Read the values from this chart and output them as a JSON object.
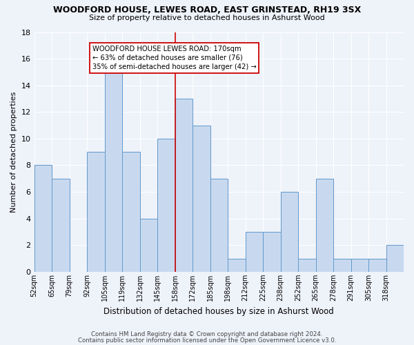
{
  "title": "WOODFORD HOUSE, LEWES ROAD, EAST GRINSTEAD, RH19 3SX",
  "subtitle": "Size of property relative to detached houses in Ashurst Wood",
  "xlabel": "Distribution of detached houses by size in Ashurst Wood",
  "ylabel": "Number of detached properties",
  "bin_labels": [
    "52sqm",
    "65sqm",
    "79sqm",
    "92sqm",
    "105sqm",
    "119sqm",
    "132sqm",
    "145sqm",
    "158sqm",
    "172sqm",
    "185sqm",
    "198sqm",
    "212sqm",
    "225sqm",
    "238sqm",
    "252sqm",
    "265sqm",
    "278sqm",
    "291sqm",
    "305sqm",
    "318sqm"
  ],
  "bin_edges": [
    0,
    1,
    2,
    3,
    4,
    5,
    6,
    7,
    8,
    9,
    10,
    11,
    12,
    13,
    14,
    15,
    16,
    17,
    18,
    19,
    20,
    21
  ],
  "values": [
    8,
    7,
    0,
    9,
    15,
    9,
    4,
    10,
    13,
    11,
    7,
    1,
    3,
    3,
    6,
    1,
    7,
    1,
    1,
    1,
    2
  ],
  "property_bin": 8,
  "property_label": "WOODFORD HOUSE LEWES ROAD: 170sqm",
  "annotation_line1": "← 63% of detached houses are smaller (76)",
  "annotation_line2": "35% of semi-detached houses are larger (42) →",
  "bar_color": "#c8d9ef",
  "bar_edge_color": "#6098cc",
  "vline_color": "#cc0000",
  "annotation_box_edge_color": "#cc0000",
  "background_color": "#eef2f9",
  "grid_color": "#ffffff",
  "ylim": [
    0,
    18
  ],
  "yticks": [
    0,
    2,
    4,
    6,
    8,
    10,
    12,
    14,
    16,
    18
  ],
  "footer1": "Contains HM Land Registry data © Crown copyright and database right 2024.",
  "footer2": "Contains public sector information licensed under the Open Government Licence v3.0."
}
